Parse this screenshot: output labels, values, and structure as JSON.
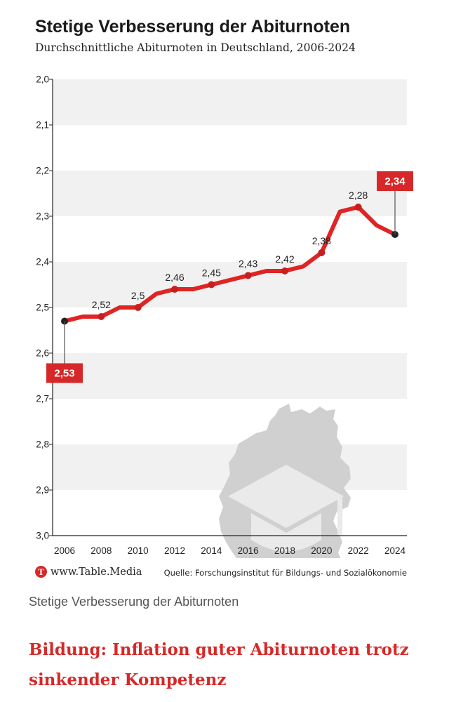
{
  "chart_data": {
    "type": "line",
    "title": "Stetige Verbesserung der Abiturnoten",
    "subtitle": "Durchschnittliche Abiturnoten in Deutschland, 2006-2024",
    "xlabel": "",
    "ylabel": "",
    "ylim": [
      2.0,
      3.0
    ],
    "y_inverted": true,
    "yticks": [
      "2,0",
      "2,1",
      "2,2",
      "2,3",
      "2,4",
      "2,5",
      "2,6",
      "2,7",
      "2,8",
      "2,9",
      "3,0"
    ],
    "xticks": [
      "2006",
      "2008",
      "2010",
      "2012",
      "2014",
      "2016",
      "2018",
      "2020",
      "2022",
      "2024"
    ],
    "grid": "alternating horizontal bands",
    "x": [
      2006,
      2007,
      2008,
      2009,
      2010,
      2011,
      2012,
      2013,
      2014,
      2015,
      2016,
      2017,
      2018,
      2019,
      2020,
      2021,
      2022,
      2023,
      2024
    ],
    "values": [
      2.53,
      2.52,
      2.52,
      2.5,
      2.5,
      2.47,
      2.46,
      2.46,
      2.45,
      2.44,
      2.43,
      2.42,
      2.42,
      2.41,
      2.38,
      2.29,
      2.28,
      2.32,
      2.34
    ],
    "labels": [
      {
        "x": 2008,
        "text": "2,52"
      },
      {
        "x": 2010,
        "text": "2,5"
      },
      {
        "x": 2012,
        "text": "2,46"
      },
      {
        "x": 2014,
        "text": "2,45"
      },
      {
        "x": 2016,
        "text": "2,43"
      },
      {
        "x": 2018,
        "text": "2,42"
      },
      {
        "x": 2020,
        "text": "2,38"
      },
      {
        "x": 2022,
        "text": "2,28"
      }
    ],
    "callouts": [
      {
        "x": 2006,
        "text": "2,53"
      },
      {
        "x": 2024,
        "text": "2,34"
      }
    ],
    "colors": {
      "line": "#e02424",
      "marker": "#c81e1e",
      "callout": "#d62828",
      "band": "#f1f1f1"
    }
  },
  "brand": {
    "logo_letter": "T",
    "text": "www.Table.Media"
  },
  "source": "Quelle: Forschungsinstitut für Bildungs- und Sozialökonomie",
  "caption": "Stetige Verbesserung der Abiturnoten",
  "headline": "Bildung: Inflation guter Abiturnoten trotz sinkender Kompetenz"
}
